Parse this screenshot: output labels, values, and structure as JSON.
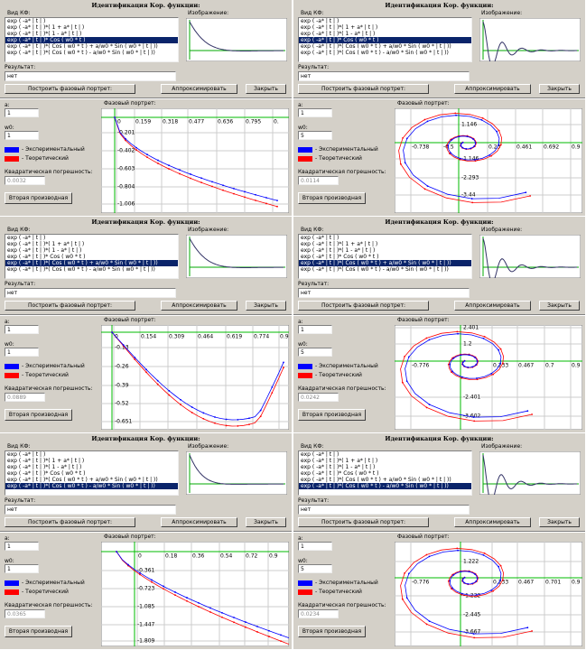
{
  "common": {
    "title": "Идентификация Кор. функции:",
    "kf_label": "Вид КФ:",
    "items": [
      "exp ( -a* | t | )",
      "exp ( -a* | t | )*( 1 + a* | t | )",
      "exp ( -a* | t | )*( 1 - a* | t | )",
      "exp ( -a* | t | )* Cos ( w0 * t )",
      "exp ( -a* | t | )*( Cos ( w0 * t ) + a/w0 * Sin ( w0 * | t | ))",
      "exp ( -a* | t | )*( Cos ( w0 * t ) - a/w0 * Sin ( w0 * | t | ))"
    ],
    "image_label": "Изображение:",
    "result_label": "Результат:",
    "build_button": "Построить фазовый портрет:",
    "approx_button": "Аппроксимировать",
    "close_button": "Закрыть",
    "a_label": "a:",
    "w0_label": "w0:",
    "legend_experimental": "- Экспериментальный",
    "legend_theoretical": "- Теоретический",
    "error_label": "Квадратическая погрешность:",
    "derivative_button": "Вторая производная",
    "portrait_label": "Фазовый портрет:"
  },
  "panels": [
    {
      "selected": 3,
      "result": "нет",
      "a": "1",
      "w0": "1",
      "error": "0.0032",
      "xticks": [
        "0",
        "0.159",
        "0.318",
        "0.477",
        "0.636",
        "0.795",
        "0."
      ],
      "yticks": [
        "-0.201",
        "-0.402",
        "-0.603",
        "-0.804",
        "-1.006"
      ]
    },
    {
      "selected": 3,
      "result": "нет",
      "a": "1",
      "w0": "5",
      "error": "0.0114",
      "xticks": [
        "-0.738",
        "-0.5",
        "0.23",
        "0.461",
        "0.692",
        "0.9"
      ],
      "yticks": [
        "1.146",
        "-1.146",
        "-2.293",
        "-3.44"
      ]
    },
    {
      "selected": 4,
      "result": "нет",
      "a": "1",
      "w0": "1",
      "error": "0.0889",
      "xticks": [
        "0",
        "0.154",
        "0.309",
        "0.464",
        "0.619",
        "0.774",
        "0.9"
      ],
      "yticks": [
        "-0.13",
        "-0.26",
        "-0.39",
        "-0.52",
        "-0.651"
      ]
    },
    {
      "selected": 4,
      "result": "нет",
      "a": "1",
      "w0": "5",
      "error": "0.0242",
      "xticks": [
        "-0.776",
        "0.233",
        "0.467",
        "0.7",
        "0.9"
      ],
      "yticks": [
        "2.401",
        "1.2",
        "-2.401",
        "-3.602"
      ]
    },
    {
      "selected": 5,
      "result": "нет",
      "a": "1",
      "w0": "1",
      "error": "0.0365",
      "xticks": [
        "0",
        "0.18",
        "0.36",
        "0.54",
        "0.72",
        "0.9"
      ],
      "yticks": [
        "-0.361",
        "-0.723",
        "-1.085",
        "-1.447",
        "-1.809"
      ]
    },
    {
      "selected": 5,
      "result": "нет",
      "a": "1",
      "w0": "5",
      "error": "0.0234",
      "xticks": [
        "-0.776",
        "0.233",
        "0.467",
        "0.701",
        "0.9"
      ],
      "yticks": [
        "1.222",
        "-1.222",
        "-2.445",
        "-3.667"
      ]
    }
  ]
}
